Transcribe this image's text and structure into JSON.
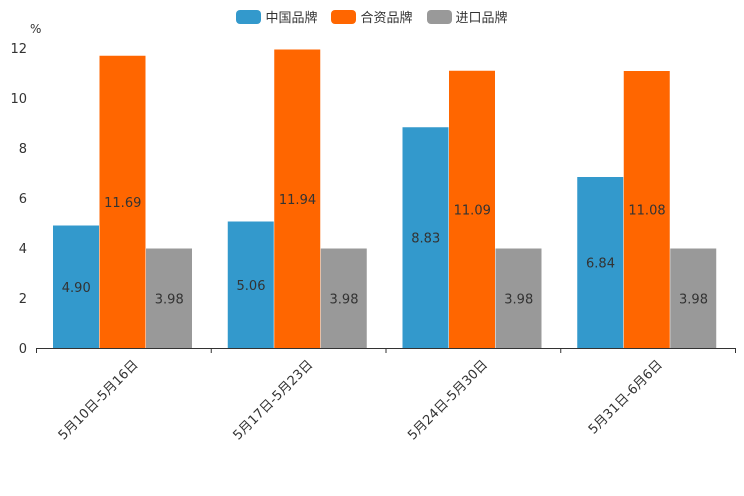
{
  "chart_data": {
    "type": "bar",
    "title": "",
    "ylabel": "%",
    "xlabel": "",
    "ylim": [
      0,
      12
    ],
    "yticks": [
      "0",
      "2",
      "4",
      "6",
      "8",
      "10",
      "12"
    ],
    "categories": [
      "5月10日-5月16日",
      "5月17日-5月23日",
      "5月24日-5月30日",
      "5月31日-6月6日"
    ],
    "series": [
      {
        "name": "中国品牌",
        "color": "#3399cc",
        "values": [
          4.9,
          5.06,
          8.83,
          6.84
        ],
        "labels": [
          "4.90",
          "5.06",
          "8.83",
          "6.84"
        ]
      },
      {
        "name": "合资品牌",
        "color": "#ff6600",
        "values": [
          11.69,
          11.94,
          11.09,
          11.08
        ],
        "labels": [
          "11.69",
          "11.94",
          "11.09",
          "11.08"
        ]
      },
      {
        "name": "进口品牌",
        "color": "#999999",
        "values": [
          3.98,
          3.98,
          3.98,
          3.98
        ],
        "labels": [
          "3.98",
          "3.98",
          "3.98",
          "3.98"
        ]
      }
    ],
    "legend_position": "top-center"
  }
}
